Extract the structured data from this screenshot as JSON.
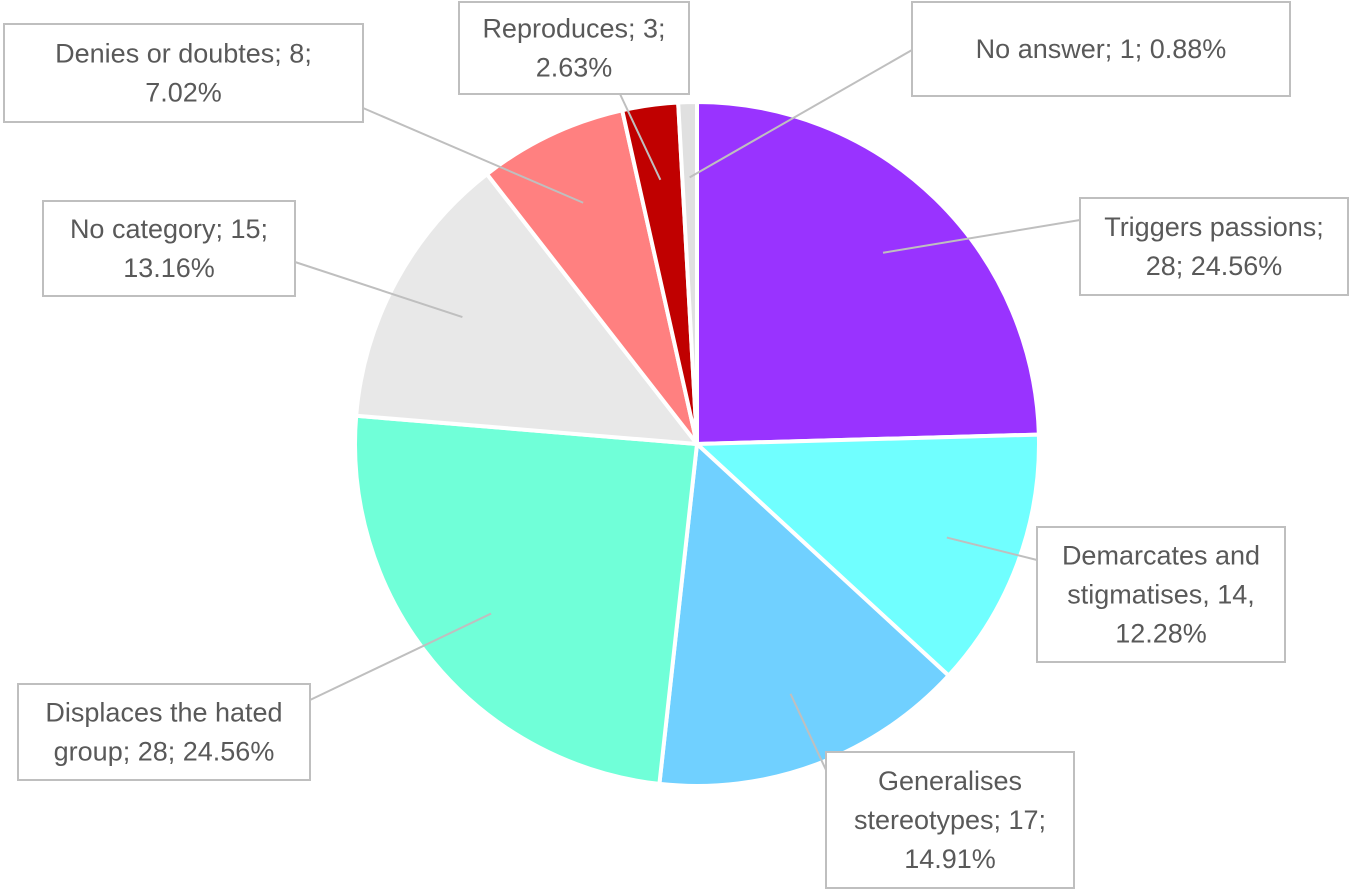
{
  "chart_data": {
    "type": "pie",
    "title": "",
    "slices": [
      {
        "name": "Triggers passions",
        "value": 28,
        "percent": "24.56%",
        "color": "#9933ff",
        "label_lines": [
          "Triggers passions;",
          "28; 24.56%"
        ]
      },
      {
        "name": "Demarcates and stigmatises",
        "value": 14,
        "percent": "12.28%",
        "color": "#70ffff",
        "label_lines": [
          "Demarcates and",
          "stigmatises, 14,",
          "12.28%"
        ]
      },
      {
        "name": "Generalises stereotypes",
        "value": 17,
        "percent": "14.91%",
        "color": "#70d0ff",
        "label_lines": [
          "Generalises",
          "stereotypes; 17;",
          "14.91%"
        ]
      },
      {
        "name": "Displaces the hated group",
        "value": 28,
        "percent": "24.56%",
        "color": "#70ffd8",
        "label_lines": [
          "Displaces the hated",
          "group; 28; 24.56%"
        ]
      },
      {
        "name": "No category",
        "value": 15,
        "percent": "13.16%",
        "color": "#e8e8e8",
        "label_lines": [
          "No category; 15;",
          "13.16%"
        ]
      },
      {
        "name": "Denies or doubtes",
        "value": 8,
        "percent": "7.02%",
        "color": "#ff8080",
        "label_lines": [
          "Denies or doubtes; 8;",
          "7.02%"
        ]
      },
      {
        "name": "Reproduces",
        "value": 3,
        "percent": "2.63%",
        "color": "#c00000",
        "label_lines": [
          "Reproduces; 3;",
          "2.63%"
        ]
      },
      {
        "name": "No answer",
        "value": 1,
        "percent": "0.88%",
        "color": "#e0e0e0",
        "label_lines": [
          "No answer; 1; 0.88%"
        ]
      }
    ]
  }
}
